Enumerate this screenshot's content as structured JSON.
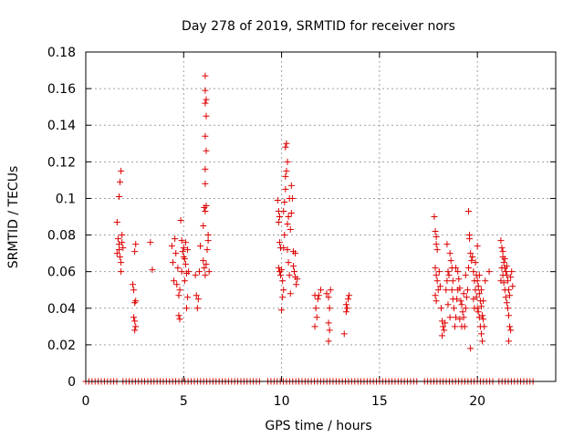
{
  "chart_data": {
    "type": "scatter",
    "title": "Day 278 of 2019, SRMTID for receiver nors",
    "xlabel": "GPS time / hours",
    "ylabel": "SRMTID / TECUs",
    "xlim": [
      0,
      24
    ],
    "ylim": [
      0,
      0.18
    ],
    "xticks": [
      0,
      5,
      10,
      15,
      20
    ],
    "yticks": [
      0,
      0.02,
      0.04,
      0.06,
      0.08,
      0.1,
      0.12,
      0.14,
      0.16,
      0.18
    ],
    "xtick_labels": [
      "0",
      "5",
      "10",
      "15",
      "20"
    ],
    "ytick_labels": [
      "0",
      "0.02",
      "0.04",
      "0.06",
      "0.08",
      "0.1",
      "0.12",
      "0.14",
      "0.16",
      "0.18"
    ],
    "grid": true,
    "marker": "+",
    "marker_color": "#dd0000",
    "series": [
      {
        "name": "SRMTID",
        "points": [
          [
            1.6,
            0.087
          ],
          [
            1.65,
            0.078
          ],
          [
            1.7,
            0.075
          ],
          [
            1.7,
            0.072
          ],
          [
            1.75,
            0.068
          ],
          [
            1.8,
            0.065
          ],
          [
            1.8,
            0.06
          ],
          [
            1.85,
            0.08
          ],
          [
            1.9,
            0.073
          ],
          [
            1.7,
            0.101
          ],
          [
            1.75,
            0.109
          ],
          [
            1.8,
            0.115
          ],
          [
            1.6,
            0.07
          ],
          [
            1.85,
            0.076
          ],
          [
            2.4,
            0.053
          ],
          [
            2.45,
            0.05
          ],
          [
            2.5,
            0.043
          ],
          [
            2.55,
            0.044
          ],
          [
            2.45,
            0.035
          ],
          [
            2.5,
            0.033
          ],
          [
            2.55,
            0.03
          ],
          [
            2.5,
            0.028
          ],
          [
            2.55,
            0.075
          ],
          [
            2.5,
            0.071
          ],
          [
            3.3,
            0.076
          ],
          [
            3.4,
            0.061
          ],
          [
            4.4,
            0.074
          ],
          [
            4.45,
            0.065
          ],
          [
            4.5,
            0.055
          ],
          [
            4.55,
            0.078
          ],
          [
            4.6,
            0.07
          ],
          [
            4.65,
            0.053
          ],
          [
            4.7,
            0.062
          ],
          [
            4.75,
            0.047
          ],
          [
            4.75,
            0.036
          ],
          [
            4.8,
            0.034
          ],
          [
            4.85,
            0.088
          ],
          [
            4.9,
            0.077
          ],
          [
            4.95,
            0.071
          ],
          [
            5.0,
            0.068
          ],
          [
            5.05,
            0.067
          ],
          [
            5.1,
            0.064
          ],
          [
            5.15,
            0.059
          ],
          [
            5.2,
            0.046
          ],
          [
            5.0,
            0.073
          ],
          [
            5.1,
            0.076
          ],
          [
            5.2,
            0.072
          ],
          [
            4.9,
            0.06
          ],
          [
            5.05,
            0.055
          ],
          [
            5.15,
            0.04
          ],
          [
            5.25,
            0.06
          ],
          [
            4.8,
            0.05
          ],
          [
            5.6,
            0.058
          ],
          [
            5.65,
            0.047
          ],
          [
            5.7,
            0.04
          ],
          [
            5.75,
            0.045
          ],
          [
            5.8,
            0.06
          ],
          [
            5.85,
            0.074
          ],
          [
            6.0,
            0.066
          ],
          [
            6.05,
            0.062
          ],
          [
            6.1,
            0.058
          ],
          [
            6.15,
            0.064
          ],
          [
            6.2,
            0.072
          ],
          [
            6.25,
            0.077
          ],
          [
            6.3,
            0.06
          ],
          [
            6.0,
            0.085
          ],
          [
            6.05,
            0.095
          ],
          [
            6.1,
            0.093
          ],
          [
            6.15,
            0.096
          ],
          [
            6.1,
            0.108
          ],
          [
            6.1,
            0.116
          ],
          [
            6.15,
            0.126
          ],
          [
            6.1,
            0.134
          ],
          [
            6.15,
            0.145
          ],
          [
            6.1,
            0.152
          ],
          [
            6.15,
            0.154
          ],
          [
            6.1,
            0.159
          ],
          [
            6.1,
            0.167
          ],
          [
            6.25,
            0.08
          ],
          [
            9.8,
            0.099
          ],
          [
            9.85,
            0.093
          ],
          [
            9.9,
            0.09
          ],
          [
            9.85,
            0.087
          ],
          [
            9.9,
            0.076
          ],
          [
            9.95,
            0.073
          ],
          [
            9.85,
            0.062
          ],
          [
            9.9,
            0.06
          ],
          [
            9.95,
            0.058
          ],
          [
            10.0,
            0.061
          ],
          [
            10.05,
            0.055
          ],
          [
            10.1,
            0.05
          ],
          [
            10.0,
            0.039
          ],
          [
            10.05,
            0.046
          ],
          [
            10.1,
            0.073
          ],
          [
            10.15,
            0.08
          ],
          [
            10.1,
            0.093
          ],
          [
            10.15,
            0.098
          ],
          [
            10.2,
            0.105
          ],
          [
            10.2,
            0.112
          ],
          [
            10.25,
            0.115
          ],
          [
            10.3,
            0.12
          ],
          [
            10.2,
            0.128
          ],
          [
            10.25,
            0.13
          ],
          [
            10.3,
            0.086
          ],
          [
            10.35,
            0.09
          ],
          [
            10.4,
            0.1
          ],
          [
            10.45,
            0.083
          ],
          [
            10.5,
            0.107
          ],
          [
            10.55,
            0.1
          ],
          [
            10.3,
            0.072
          ],
          [
            10.35,
            0.065
          ],
          [
            10.4,
            0.058
          ],
          [
            10.45,
            0.048
          ],
          [
            10.6,
            0.071
          ],
          [
            10.6,
            0.063
          ],
          [
            10.65,
            0.06
          ],
          [
            10.7,
            0.057
          ],
          [
            10.75,
            0.053
          ],
          [
            10.8,
            0.056
          ],
          [
            10.7,
            0.07
          ],
          [
            10.5,
            0.092
          ],
          [
            11.7,
            0.047
          ],
          [
            11.75,
            0.04
          ],
          [
            11.8,
            0.035
          ],
          [
            11.7,
            0.03
          ],
          [
            11.85,
            0.045
          ],
          [
            11.9,
            0.047
          ],
          [
            12.0,
            0.05
          ],
          [
            12.3,
            0.048
          ],
          [
            12.4,
            0.046
          ],
          [
            12.45,
            0.04
          ],
          [
            12.4,
            0.032
          ],
          [
            12.45,
            0.028
          ],
          [
            12.4,
            0.022
          ],
          [
            12.5,
            0.05
          ],
          [
            13.2,
            0.026
          ],
          [
            13.3,
            0.042
          ],
          [
            13.35,
            0.04
          ],
          [
            13.4,
            0.045
          ],
          [
            13.45,
            0.047
          ],
          [
            13.3,
            0.038
          ],
          [
            17.8,
            0.09
          ],
          [
            17.85,
            0.082
          ],
          [
            17.9,
            0.079
          ],
          [
            17.9,
            0.075
          ],
          [
            17.95,
            0.072
          ],
          [
            17.85,
            0.062
          ],
          [
            17.9,
            0.058
          ],
          [
            17.95,
            0.055
          ],
          [
            18.0,
            0.05
          ],
          [
            17.85,
            0.047
          ],
          [
            17.9,
            0.044
          ],
          [
            18.05,
            0.06
          ],
          [
            18.1,
            0.052
          ],
          [
            18.15,
            0.04
          ],
          [
            18.2,
            0.033
          ],
          [
            18.25,
            0.03
          ],
          [
            18.3,
            0.028
          ],
          [
            18.2,
            0.025
          ],
          [
            18.35,
            0.032
          ],
          [
            18.4,
            0.05
          ],
          [
            18.45,
            0.055
          ],
          [
            18.5,
            0.06
          ],
          [
            18.55,
            0.058
          ],
          [
            18.45,
            0.075
          ],
          [
            18.6,
            0.07
          ],
          [
            18.65,
            0.066
          ],
          [
            18.7,
            0.062
          ],
          [
            18.75,
            0.045
          ],
          [
            18.8,
            0.04
          ],
          [
            18.85,
            0.03
          ],
          [
            18.9,
            0.035
          ],
          [
            18.7,
            0.05
          ],
          [
            18.75,
            0.055
          ],
          [
            18.9,
            0.062
          ],
          [
            19.0,
            0.06
          ],
          [
            19.05,
            0.056
          ],
          [
            19.1,
            0.051
          ],
          [
            19.15,
            0.044
          ],
          [
            19.2,
            0.042
          ],
          [
            19.25,
            0.038
          ],
          [
            19.3,
            0.035
          ],
          [
            19.35,
            0.03
          ],
          [
            19.4,
            0.04
          ],
          [
            19.45,
            0.046
          ],
          [
            19.5,
            0.05
          ],
          [
            19.55,
            0.062
          ],
          [
            19.6,
            0.078
          ],
          [
            19.65,
            0.07
          ],
          [
            19.7,
            0.066
          ],
          [
            19.55,
            0.093
          ],
          [
            19.6,
            0.08
          ],
          [
            19.65,
            0.018
          ],
          [
            19.75,
            0.068
          ],
          [
            19.8,
            0.06
          ],
          [
            19.85,
            0.055
          ],
          [
            19.9,
            0.05
          ],
          [
            19.95,
            0.046
          ],
          [
            20.0,
            0.04
          ],
          [
            20.05,
            0.038
          ],
          [
            20.1,
            0.035
          ],
          [
            20.15,
            0.03
          ],
          [
            20.2,
            0.026
          ],
          [
            20.25,
            0.022
          ],
          [
            19.8,
            0.045
          ],
          [
            19.85,
            0.04
          ],
          [
            19.9,
            0.065
          ],
          [
            19.95,
            0.058
          ],
          [
            20.0,
            0.055
          ],
          [
            20.05,
            0.052
          ],
          [
            20.1,
            0.048
          ],
          [
            20.15,
            0.044
          ],
          [
            20.2,
            0.041
          ],
          [
            20.25,
            0.036
          ],
          [
            20.3,
            0.034
          ],
          [
            20.35,
            0.03
          ],
          [
            20.0,
            0.074
          ],
          [
            20.1,
            0.058
          ],
          [
            20.2,
            0.05
          ],
          [
            20.3,
            0.044
          ],
          [
            19.0,
            0.05
          ],
          [
            19.1,
            0.034
          ],
          [
            19.2,
            0.03
          ],
          [
            18.95,
            0.045
          ],
          [
            18.6,
            0.035
          ],
          [
            18.5,
            0.042
          ],
          [
            19.3,
            0.048
          ],
          [
            19.4,
            0.058
          ],
          [
            21.2,
            0.077
          ],
          [
            21.25,
            0.073
          ],
          [
            21.3,
            0.068
          ],
          [
            21.35,
            0.065
          ],
          [
            21.4,
            0.062
          ],
          [
            21.45,
            0.06
          ],
          [
            21.5,
            0.058
          ],
          [
            21.55,
            0.055
          ],
          [
            21.6,
            0.05
          ],
          [
            21.65,
            0.047
          ],
          [
            21.3,
            0.058
          ],
          [
            21.35,
            0.054
          ],
          [
            21.4,
            0.05
          ],
          [
            21.45,
            0.046
          ],
          [
            21.5,
            0.043
          ],
          [
            21.55,
            0.04
          ],
          [
            21.6,
            0.036
          ],
          [
            21.65,
            0.03
          ],
          [
            21.7,
            0.028
          ],
          [
            21.6,
            0.022
          ],
          [
            21.25,
            0.062
          ],
          [
            21.3,
            0.071
          ],
          [
            21.5,
            0.063
          ],
          [
            21.7,
            0.057
          ],
          [
            21.75,
            0.06
          ],
          [
            21.8,
            0.052
          ],
          [
            21.4,
            0.067
          ],
          [
            21.2,
            0.055
          ],
          [
            20.6,
            0.06
          ],
          [
            20.4,
            0.055
          ]
        ]
      }
    ],
    "zero_band": {
      "y": 0,
      "x_ranges": [
        [
          0,
          1.6
        ],
        [
          1.9,
          9.0
        ],
        [
          9.3,
          17.0
        ],
        [
          17.3,
          20.9
        ],
        [
          21.1,
          23.0
        ]
      ]
    }
  }
}
